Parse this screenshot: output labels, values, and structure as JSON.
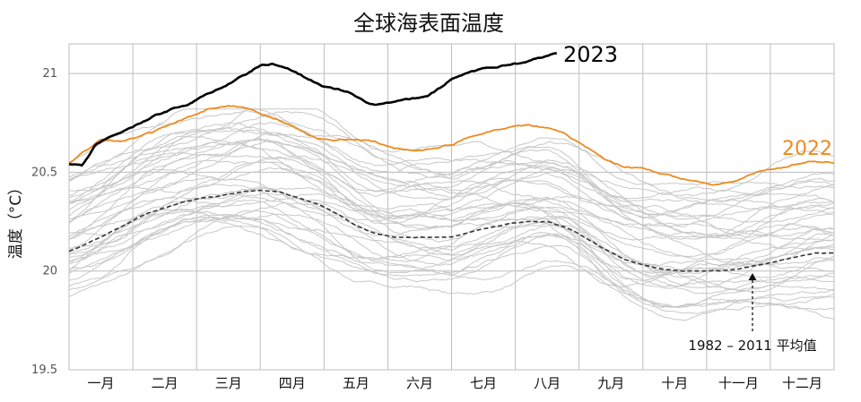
{
  "chart_data": {
    "type": "line",
    "title": "全球海表面温度",
    "ylabel": "温度（°C）",
    "xlabel": "",
    "ylim": [
      19.5,
      21.15
    ],
    "yticks": [
      19.5,
      20,
      20.5,
      21
    ],
    "ytick_labels": [
      "19.5",
      "20",
      "20.5",
      "21"
    ],
    "months": [
      "一月",
      "二月",
      "三月",
      "四月",
      "五月",
      "六月",
      "七月",
      "八月",
      "九月",
      "十月",
      "十一月",
      "十二月"
    ],
    "grid": true,
    "series": [
      {
        "name": "2023",
        "label": "2023",
        "color": "#000000",
        "x": [
          0,
          0.2,
          0.4,
          0.6,
          0.8,
          1.0,
          1.3,
          1.6,
          1.9,
          2.2,
          2.5,
          2.8,
          3.0,
          3.2,
          3.4,
          3.6,
          3.8,
          4.0,
          4.2,
          4.4,
          4.6,
          4.8,
          5.0,
          5.2,
          5.4,
          5.6,
          5.8,
          6.0,
          6.2,
          6.4,
          6.6,
          6.8,
          7.0,
          7.2,
          7.4,
          7.65
        ],
        "values": [
          20.54,
          20.53,
          20.63,
          20.68,
          20.7,
          20.73,
          20.78,
          20.82,
          20.85,
          20.9,
          20.95,
          21.0,
          21.04,
          21.05,
          21.03,
          21.0,
          20.97,
          20.93,
          20.92,
          20.9,
          20.86,
          20.84,
          20.85,
          20.86,
          20.87,
          20.88,
          20.92,
          20.97,
          21.0,
          21.02,
          21.03,
          21.04,
          21.05,
          21.06,
          21.08,
          21.1
        ]
      },
      {
        "name": "2022",
        "label": "2022",
        "color": "#ee8a1e",
        "x": [
          0,
          0.3,
          0.5,
          0.8,
          1.0,
          1.3,
          1.6,
          1.9,
          2.2,
          2.5,
          2.8,
          3.0,
          3.3,
          3.6,
          3.9,
          4.2,
          4.5,
          4.8,
          5.1,
          5.4,
          5.7,
          6.0,
          6.3,
          6.6,
          6.9,
          7.2,
          7.5,
          7.8,
          8.1,
          8.4,
          8.7,
          9.0,
          9.3,
          9.6,
          9.9,
          10.2,
          10.5,
          10.8,
          11.1,
          11.4,
          11.7,
          12.0
        ],
        "values": [
          20.55,
          20.62,
          20.67,
          20.66,
          20.67,
          20.7,
          20.74,
          20.78,
          20.82,
          20.83,
          20.82,
          20.8,
          20.76,
          20.72,
          20.67,
          20.66,
          20.67,
          20.65,
          20.62,
          20.61,
          20.62,
          20.64,
          20.68,
          20.71,
          20.73,
          20.74,
          20.72,
          20.69,
          20.63,
          20.57,
          20.53,
          20.52,
          20.49,
          20.47,
          20.45,
          20.44,
          20.46,
          20.5,
          20.52,
          20.54,
          20.56,
          20.55
        ]
      },
      {
        "name": "1982 – 2011 平均值",
        "label": "1982 – 2011 平均值",
        "color": "#333333",
        "dashed": true,
        "x": [
          0,
          0.3,
          0.6,
          0.9,
          1.2,
          1.5,
          1.8,
          2.1,
          2.4,
          2.7,
          3.0,
          3.3,
          3.6,
          3.9,
          4.2,
          4.5,
          4.8,
          5.1,
          5.4,
          5.7,
          6.0,
          6.3,
          6.6,
          6.9,
          7.2,
          7.5,
          7.8,
          8.1,
          8.4,
          8.7,
          9.0,
          9.3,
          9.6,
          9.9,
          10.2,
          10.5,
          10.8,
          11.1,
          11.4,
          11.7,
          12.0
        ],
        "values": [
          20.1,
          20.14,
          20.19,
          20.24,
          20.29,
          20.32,
          20.35,
          20.37,
          20.38,
          20.4,
          20.41,
          20.4,
          20.37,
          20.34,
          20.29,
          20.23,
          20.19,
          20.17,
          20.17,
          20.17,
          20.17,
          20.2,
          20.22,
          20.24,
          20.25,
          20.25,
          20.22,
          20.17,
          20.11,
          20.06,
          20.03,
          20.01,
          20.0,
          20.0,
          20.0,
          20.01,
          20.03,
          20.05,
          20.07,
          20.09,
          20.09
        ]
      }
    ],
    "background_years_note": "gray lines: individual earlier years",
    "annotations": [
      {
        "text": "1982 – 2011 平均值",
        "points_to": "average line near 十一月"
      }
    ]
  },
  "colors": {
    "line_2023": "#000000",
    "line_2022": "#ee8a1e",
    "average": "#333333",
    "background_years": "#c8c8c8",
    "grid": "#bdbdbd"
  }
}
